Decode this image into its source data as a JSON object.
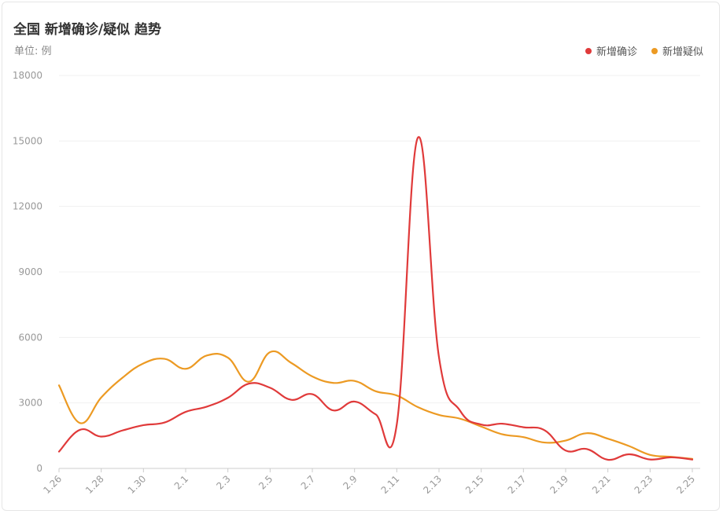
{
  "header": {
    "title": "全国 新增确诊/疑似 趋势",
    "unit": "单位: 例"
  },
  "colors": {
    "confirmed": "#e03a3a",
    "suspected": "#ec9a23",
    "grid": "#f0f0f0",
    "axis": "#cccccc"
  },
  "chart_data": {
    "type": "line",
    "title": "全国 新增确诊/疑似 趋势",
    "ylabel": "单位: 例",
    "ylim": [
      0,
      18000
    ],
    "yticks": [
      "0",
      "3000",
      "6000",
      "9000",
      "12000",
      "15000",
      "18000"
    ],
    "x": [
      "1.26",
      "1.27",
      "1.28",
      "1.29",
      "1.30",
      "1.31",
      "2.1",
      "2.2",
      "2.3",
      "2.4",
      "2.5",
      "2.6",
      "2.7",
      "2.8",
      "2.9",
      "2.10",
      "2.11",
      "2.12",
      "2.13",
      "2.14",
      "2.15",
      "2.16",
      "2.17",
      "2.18",
      "2.19",
      "2.20",
      "2.21",
      "2.22",
      "2.23",
      "2.24",
      "2.25"
    ],
    "xtick_labels": [
      "1.26",
      "1.28",
      "1.30",
      "2.1",
      "2.3",
      "2.5",
      "2.7",
      "2.9",
      "2.11",
      "2.13",
      "2.15",
      "2.17",
      "2.19",
      "2.21",
      "2.23",
      "2.25"
    ],
    "legend": {
      "position": "top-right"
    },
    "grid": true,
    "series": [
      {
        "name": "新增确诊",
        "key": "confirmed",
        "values": [
          769,
          1771,
          1459,
          1737,
          1982,
          2102,
          2590,
          2829,
          3235,
          3887,
          3694,
          3143,
          3399,
          2656,
          3062,
          2478,
          2015,
          15152,
          5090,
          2641,
          2009,
          2048,
          1886,
          1749,
          820,
          889,
          397,
          648,
          409,
          508,
          406
        ]
      },
      {
        "name": "新增疑似",
        "key": "suspected",
        "values": [
          3806,
          2077,
          3248,
          4148,
          4812,
          5019,
          4562,
          5173,
          5072,
          3971,
          5328,
          4833,
          4214,
          3916,
          4008,
          3536,
          3342,
          2807,
          2450,
          2277,
          1918,
          1563,
          1432,
          1185,
          1277,
          1614,
          1361,
          1025,
          620,
          530,
          439
        ]
      }
    ]
  }
}
